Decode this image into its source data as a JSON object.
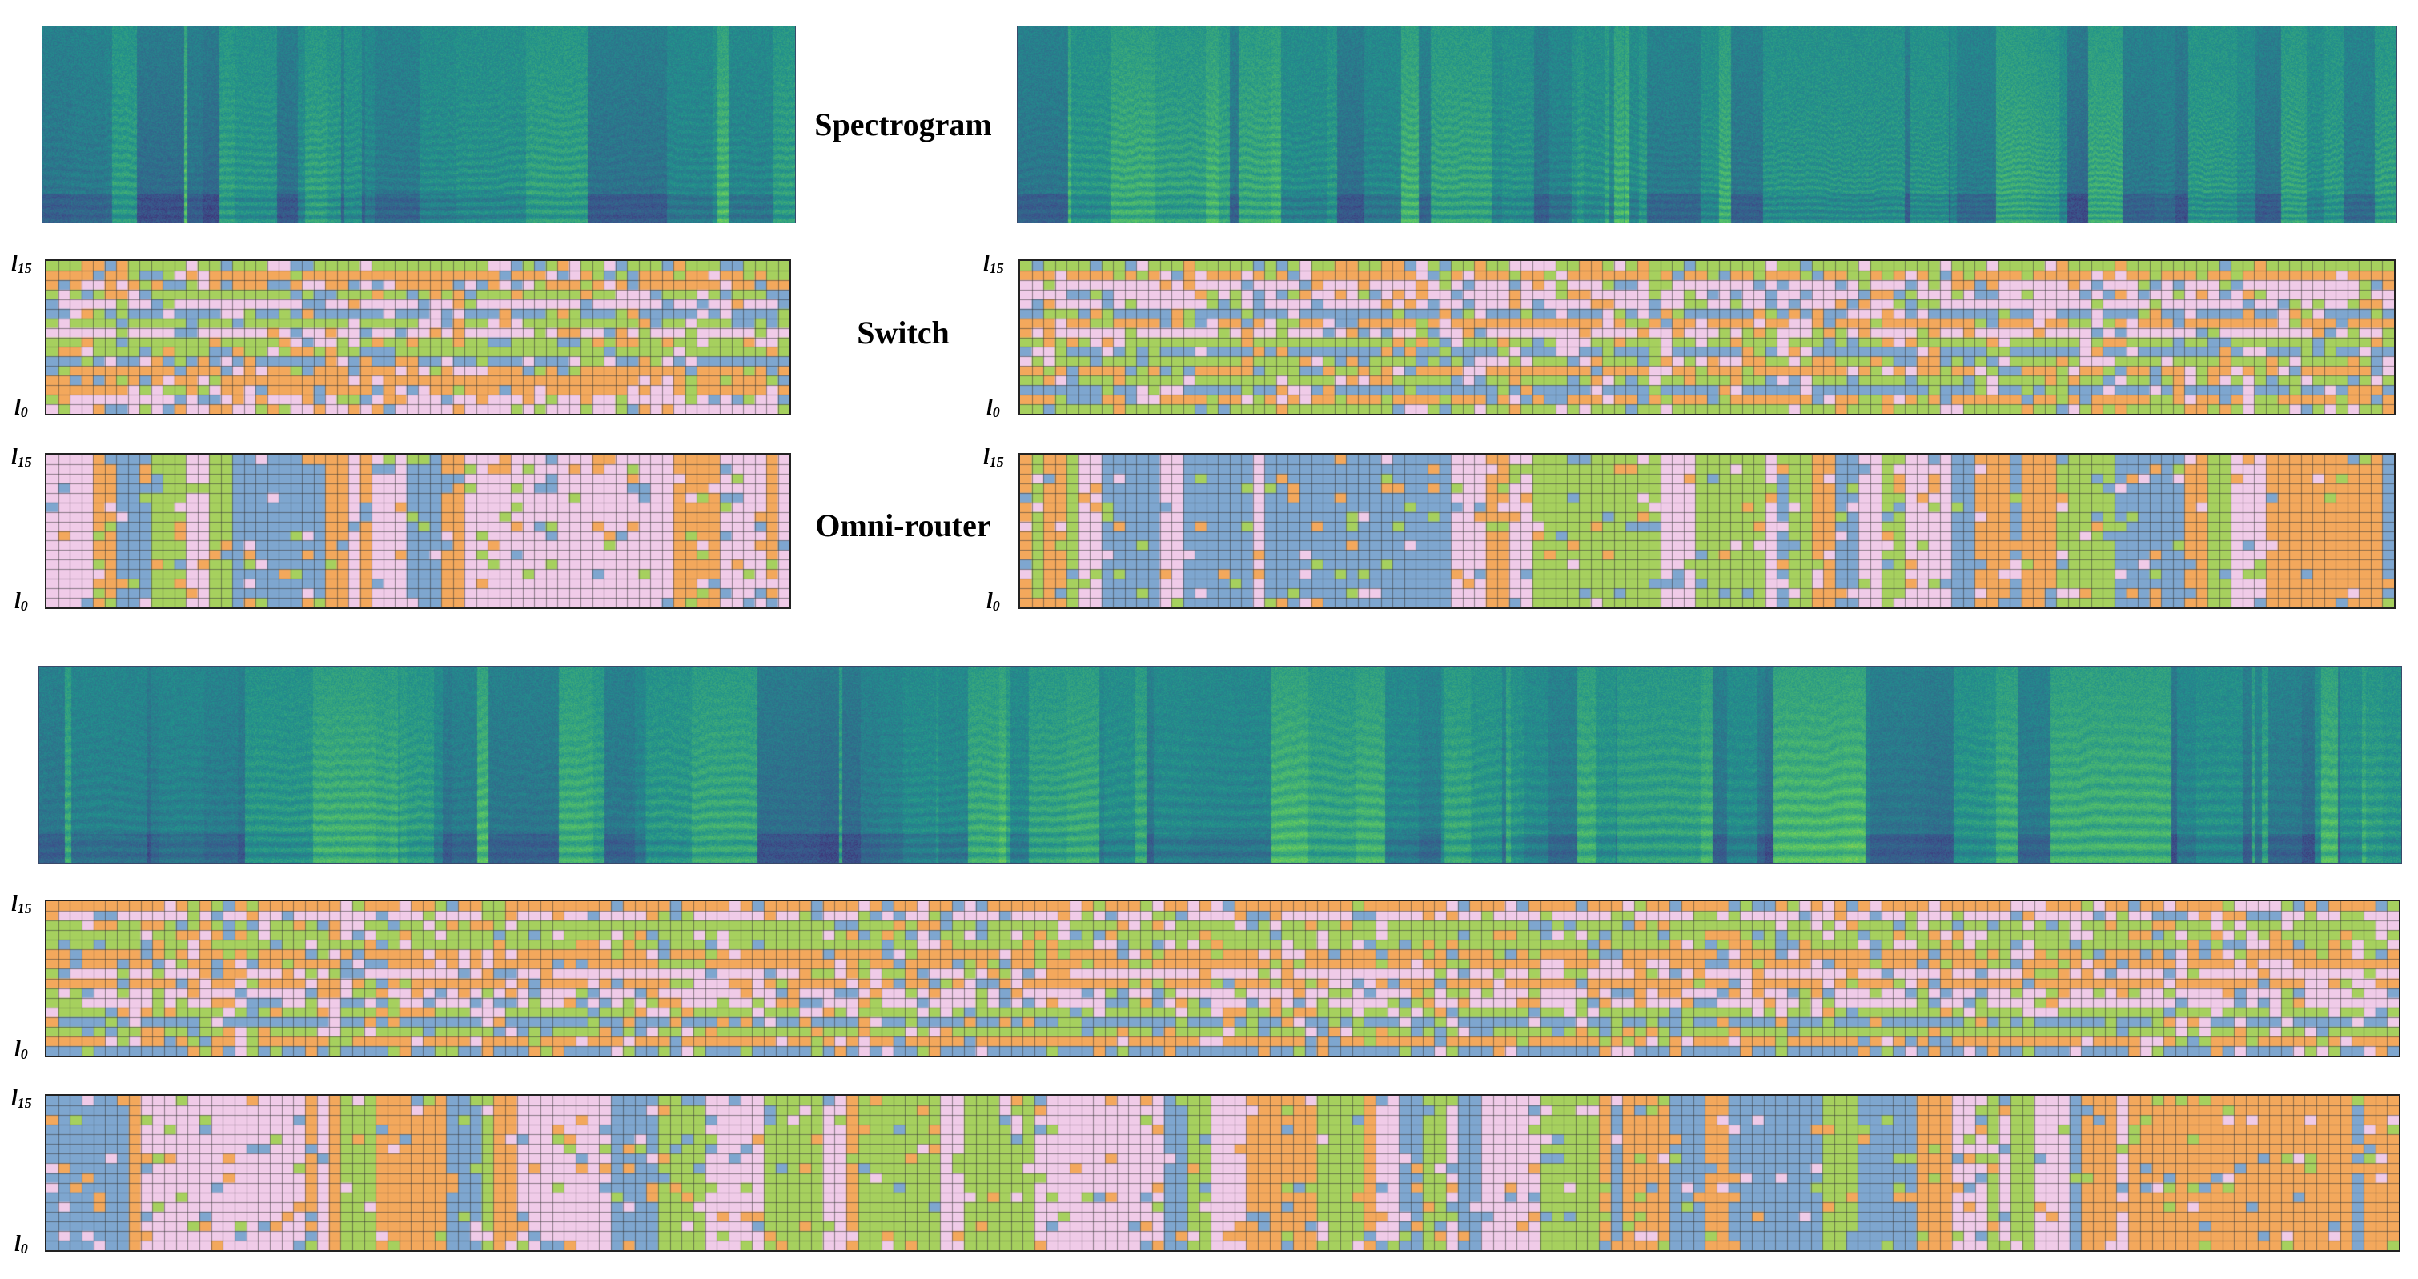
{
  "labels": {
    "spectrogram": "Spectrogram",
    "switch": "Switch",
    "omni_router": "Omni-router"
  },
  "layer_axis": {
    "top_base": "l",
    "top_sub": "15",
    "bottom_base": "l",
    "bottom_sub": "0"
  },
  "expert_colors": [
    "#a6d05e",
    "#f3a85c",
    "#f0cbe8",
    "#7ea6cf"
  ],
  "grid_line_color": "#333333",
  "layers": 16,
  "examples": [
    {
      "name": "example-1",
      "columns": 64,
      "seed": 11
    },
    {
      "name": "example-2",
      "columns": 118,
      "seed": 23
    },
    {
      "name": "example-3",
      "columns": 200,
      "seed": 37
    }
  ]
}
